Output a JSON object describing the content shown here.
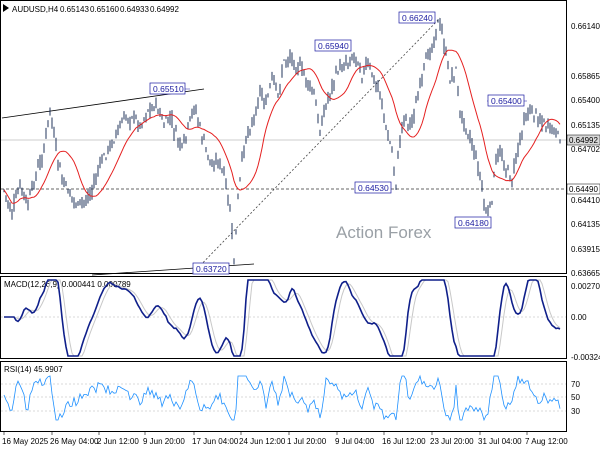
{
  "chart_data": [
    {
      "type": "candlestick",
      "title": "AUDUSD,H4",
      "ohlc": [
        "0.65143",
        "0.65160",
        "0.64933",
        "0.64992"
      ],
      "y_ticks": [
        "0.66140",
        "0.65865",
        "0.65400",
        "0.65135",
        "0.64702",
        "0.64410",
        "0.64135",
        "0.63915",
        "0.63665"
      ],
      "x_ticks": [
        "16 May 2025",
        "26 May 04:00",
        "2 Jun 12:00",
        "9 Jun 20:00",
        "17 Jun 04:00",
        "24 Jun 12:00",
        "1 Jul 20:00",
        "9 Jul 04:00",
        "16 Jul 12:00",
        "23 Jul 20:00",
        "31 Jul 04:00",
        "7 Aug 12:00"
      ],
      "ylim": [
        0.6359,
        0.6634
      ],
      "price_labels": [
        {
          "text": "0.65510",
          "value": 0.6551
        },
        {
          "text": "0.63720",
          "value": 0.6372
        },
        {
          "text": "0.65940",
          "value": 0.6594
        },
        {
          "text": "0.66240",
          "value": 0.6624
        },
        {
          "text": "0.64530",
          "value": 0.6453
        },
        {
          "text": "0.64180",
          "value": 0.6418
        },
        {
          "text": "0.65400",
          "value": 0.654
        }
      ],
      "current_price": "0.64992",
      "support_level": "0.64490",
      "watermark": "Action Forex"
    },
    {
      "type": "line",
      "title": "MACD(12,26,9) 0.000441 0.000789",
      "y_ticks": [
        "0.002702",
        "0.00",
        "-0.003241"
      ],
      "ylim": [
        -0.0034,
        0.0029
      ]
    },
    {
      "type": "line",
      "title": "RSI(14) 45.9907",
      "y_ticks": [
        "70",
        "50",
        "30"
      ],
      "ylim": [
        18,
        82
      ],
      "levels": [
        70,
        50,
        30
      ]
    }
  ]
}
